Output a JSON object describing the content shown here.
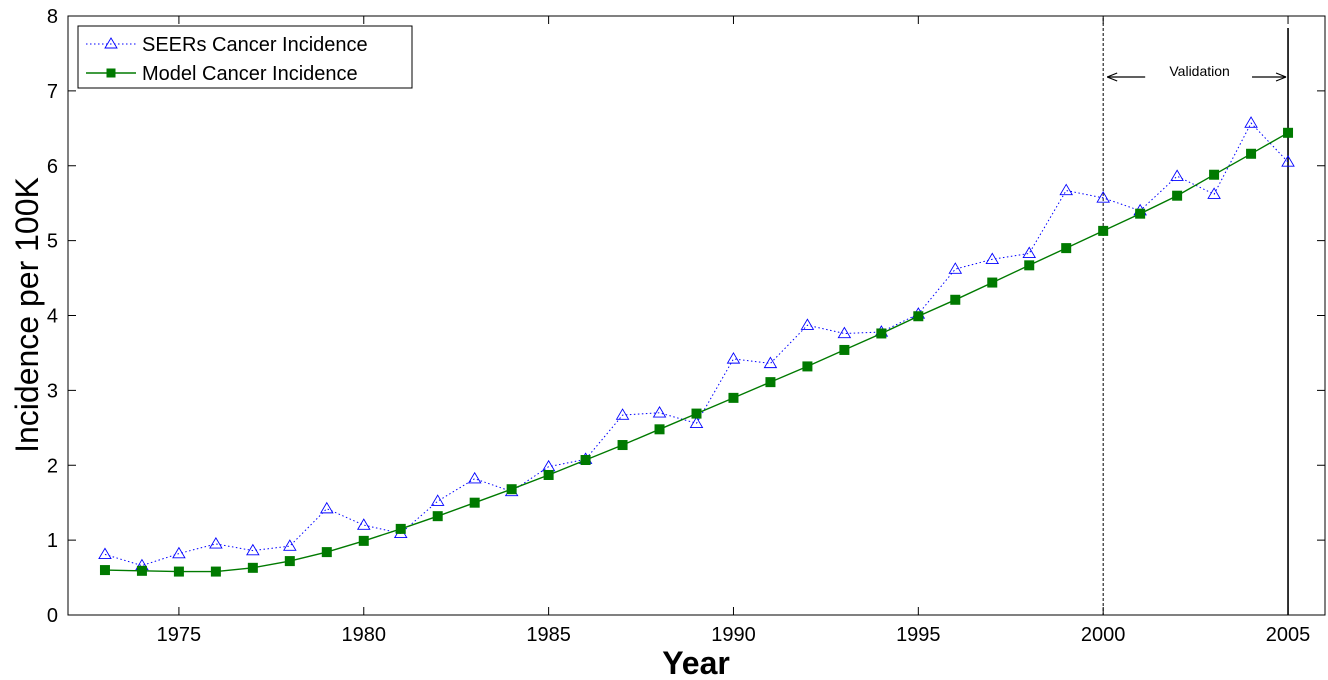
{
  "chart_data": {
    "type": "line",
    "xlabel": "Year",
    "ylabel": "Incidence per 100K",
    "xlim": [
      1972,
      2006
    ],
    "ylim": [
      0,
      8
    ],
    "xticks": [
      1975,
      1980,
      1985,
      1990,
      1995,
      2000,
      2005
    ],
    "yticks": [
      0,
      1,
      2,
      3,
      4,
      5,
      6,
      7,
      8
    ],
    "grid": false,
    "legend_position": "top-left",
    "x": [
      1973,
      1974,
      1975,
      1976,
      1977,
      1978,
      1979,
      1980,
      1981,
      1982,
      1983,
      1984,
      1985,
      1986,
      1987,
      1988,
      1989,
      1990,
      1991,
      1992,
      1993,
      1994,
      1995,
      1996,
      1997,
      1998,
      1999,
      2000,
      2001,
      2002,
      2003,
      2004,
      2005
    ],
    "series": [
      {
        "name": "SEERs Cancer Incidence",
        "color": "#0000ff",
        "marker": "triangle",
        "line_style": "dotted",
        "values": [
          0.81,
          0.66,
          0.82,
          0.95,
          0.86,
          0.92,
          1.42,
          1.2,
          1.09,
          1.52,
          1.82,
          1.65,
          1.98,
          2.08,
          2.67,
          2.7,
          2.56,
          3.42,
          3.36,
          3.87,
          3.76,
          3.78,
          4.02,
          4.62,
          4.75,
          4.83,
          5.67,
          5.57,
          5.4,
          5.86,
          5.62,
          6.57,
          6.05
        ]
      },
      {
        "name": "Model Cancer Incidence",
        "color": "#007a00",
        "marker": "square",
        "line_style": "solid",
        "values": [
          0.6,
          0.59,
          0.58,
          0.58,
          0.63,
          0.72,
          0.84,
          0.99,
          1.15,
          1.32,
          1.5,
          1.68,
          1.87,
          2.07,
          2.27,
          2.48,
          2.69,
          2.9,
          3.11,
          3.32,
          3.54,
          3.76,
          3.99,
          4.21,
          4.44,
          4.67,
          4.9,
          5.13,
          5.36,
          5.6,
          5.88,
          6.16,
          6.44
        ]
      }
    ],
    "annotations": {
      "validation_label": "Validation",
      "validation_start": 2000,
      "validation_end": 2005
    }
  }
}
